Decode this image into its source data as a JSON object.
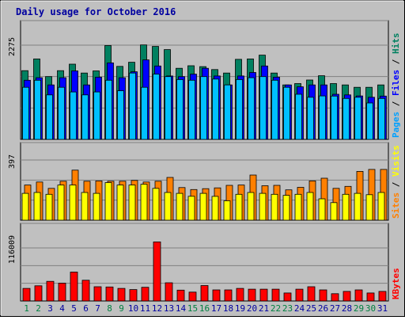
{
  "chart_data": {
    "type": "bar",
    "title": "Daily usage for October 2016",
    "title_color": "#0000a0",
    "background_color": "#c0c0c0",
    "grid": true,
    "categories": [
      "1",
      "2",
      "3",
      "4",
      "5",
      "6",
      "7",
      "8",
      "9",
      "10",
      "11",
      "12",
      "13",
      "14",
      "15",
      "16",
      "17",
      "18",
      "19",
      "20",
      "21",
      "22",
      "23",
      "24",
      "25",
      "26",
      "27",
      "28",
      "29",
      "30",
      "31"
    ],
    "weekend_days": [
      "1",
      "2",
      "8",
      "9",
      "15",
      "16",
      "22",
      "23",
      "29",
      "30"
    ],
    "weekday_label_color": "#0000a0",
    "weekend_label_color": "#008040",
    "panels": [
      {
        "id": "hits-files-pages",
        "ytick": "2275",
        "ymax": 2275,
        "side_label": [
          {
            "text": "Pages",
            "color": "#00a0ff"
          },
          {
            "text": " / ",
            "color": "#000000"
          },
          {
            "text": "Files",
            "color": "#0000ff"
          },
          {
            "text": " / ",
            "color": "#000000"
          },
          {
            "text": "Hits",
            "color": "#008060"
          }
        ],
        "series": [
          {
            "name": "Hits",
            "color": "#008060",
            "values": [
              1659,
              1943,
              1516,
              1659,
              1816,
              1602,
              1653,
              2266,
              1763,
              1863,
              2280,
              2245,
              2167,
              1716,
              1778,
              1757,
              1687,
              1602,
              1933,
              1943,
              2035,
              1602,
              1316,
              1347,
              1433,
              1537,
              1347,
              1316,
              1258,
              1258,
              1316
            ]
          },
          {
            "name": "Files",
            "color": "#0000ff",
            "values": [
              1429,
              1490,
              1316,
              1490,
              1653,
              1316,
              1502,
              1847,
              1490,
              1633,
              1919,
              1772,
              1532,
              1516,
              1575,
              1716,
              1532,
              1316,
              1532,
              1616,
              1772,
              1502,
              1316,
              1270,
              1316,
              1316,
              1090,
              1075,
              1050,
              1018,
              1045
            ]
          },
          {
            "name": "Pages",
            "color": "#00c0ff",
            "values": [
              1258,
              1429,
              1075,
              1258,
              1145,
              1075,
              1145,
              1429,
              1173,
              1602,
              1258,
              1575,
              1516,
              1445,
              1429,
              1516,
              1457,
              1316,
              1445,
              1490,
              1516,
              1429,
              1258,
              1090,
              1018,
              1050,
              1045,
              988,
              1018,
              880,
              988
            ]
          }
        ]
      },
      {
        "id": "visits-sites",
        "ytick": "397",
        "ymax": 397,
        "side_label": [
          {
            "text": "Sites",
            "color": "#ff8000"
          },
          {
            "text": " / ",
            "color": "#000000"
          },
          {
            "text": "Visits",
            "color": "#ffff00"
          }
        ],
        "series": [
          {
            "name": "Visits",
            "color": "#ff8000",
            "values": [
              232,
              252,
              210,
              257,
              330,
              257,
              259,
              257,
              257,
              262,
              252,
              257,
              282,
              215,
              202,
              208,
              213,
              230,
              232,
              298,
              227,
              230,
              200,
              217,
              259,
              277,
              210,
              223,
              322,
              335,
              335
            ]
          },
          {
            "name": "Sites",
            "color": "#ffff00",
            "values": [
              177,
              183,
              171,
              232,
              232,
              183,
              177,
              248,
              232,
              232,
              237,
              210,
              183,
              177,
              158,
              177,
              157,
              128,
              171,
              183,
              177,
              171,
              164,
              171,
              183,
              141,
              116,
              171,
              177,
              168,
              183
            ]
          }
        ]
      },
      {
        "id": "kbytes",
        "ytick": "116009",
        "ymax": 116009,
        "side_label": [
          {
            "text": "KBytes",
            "color": "#ff0000"
          }
        ],
        "series": [
          {
            "name": "KBytes",
            "color": "#ff0000",
            "values": [
              27500,
              33200,
              43000,
              39000,
              63200,
              45300,
              31100,
              30700,
              27500,
              24900,
              30000,
              129200,
              39800,
              23700,
              19400,
              33800,
              24300,
              24300,
              27500,
              25800,
              25800,
              25800,
              17500,
              25800,
              31100,
              24300,
              15900,
              21000,
              24300,
              17500,
              21000
            ]
          }
        ]
      }
    ]
  }
}
